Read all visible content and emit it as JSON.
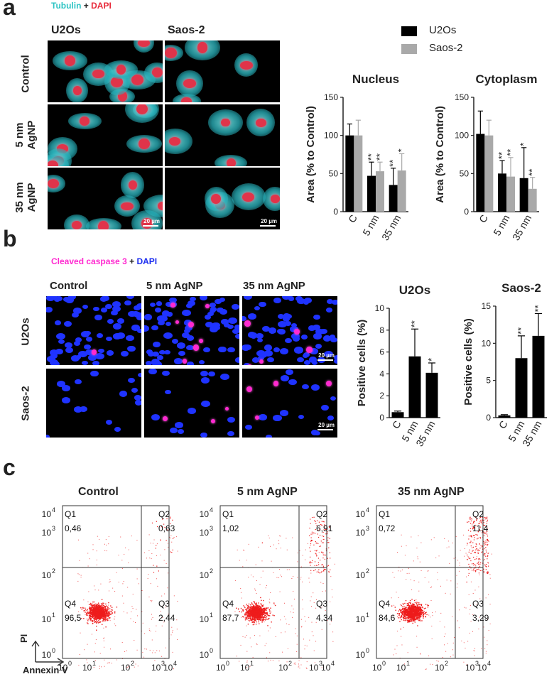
{
  "panel_a": {
    "label": "a",
    "stain_part1": "Tubulin",
    "stain_plus": " + ",
    "stain_part2": "DAPI",
    "col_headers": [
      "U2Os",
      "Saos-2"
    ],
    "row_headers": [
      [
        "Control"
      ],
      [
        "5 nm",
        "AgNP"
      ],
      [
        "35 nm",
        "AgNP"
      ]
    ],
    "scale_bar": "20 µm",
    "legend": [
      "U2Os",
      "Saos-2"
    ]
  },
  "panel_b": {
    "label": "b",
    "stain_part1": "Cleaved caspase 3",
    "stain_plus": " + ",
    "stain_part2": "DAPI",
    "col_headers": [
      "Control",
      "5 nm AgNP",
      "35 nm AgNP"
    ],
    "row_headers": [
      "U2Os",
      "Saos-2"
    ],
    "scale_bar": "20 µm"
  },
  "panel_c": {
    "label": "c",
    "titles": [
      "Control",
      "5 nm AgNP",
      "35 nm AgNP"
    ],
    "quadrants": [
      {
        "Q1": "0,46",
        "Q2": "0,63",
        "Q3": "2,44",
        "Q4": "96,5"
      },
      {
        "Q1": "1,02",
        "Q2": "6,91",
        "Q3": "4,34",
        "Q4": "87,7"
      },
      {
        "Q1": "0,72",
        "Q2": "11,4",
        "Q3": "3,29",
        "Q4": "84,6"
      }
    ],
    "quad_names": [
      "Q1",
      "Q2",
      "Q3",
      "Q4"
    ],
    "axis_x": "Annexin V",
    "axis_y": "PI",
    "tick_exponents": [
      "0",
      "1",
      "2",
      "3",
      "4"
    ],
    "tick_base": "10"
  },
  "colors": {
    "tubulin": "#2ec4c4",
    "dapi_red": "#e8293a",
    "dapi_blue": "#1a2cf0",
    "caspase": "#ff2ad0",
    "u2os_bar": "#000000",
    "saos_bar": "#a9a9a9"
  },
  "chart_data": [
    {
      "type": "bar",
      "title": "Nucleus",
      "ylabel": "Area (% to Control)",
      "categories": [
        "C",
        "5 nm",
        "35 nm"
      ],
      "ylim": [
        0,
        150
      ],
      "yticks": [
        0,
        50,
        100,
        150
      ],
      "series": [
        {
          "name": "U2Os",
          "values": [
            100,
            47,
            35
          ],
          "errors": [
            15,
            18,
            22
          ],
          "sig": [
            "",
            "**",
            "**"
          ]
        },
        {
          "name": "Saos-2",
          "values": [
            100,
            53,
            54
          ],
          "errors": [
            20,
            12,
            22
          ],
          "sig": [
            "",
            "**",
            "*"
          ]
        }
      ]
    },
    {
      "type": "bar",
      "title": "Cytoplasm",
      "ylabel": "Area (% to Control)",
      "categories": [
        "C",
        "5 nm",
        "35 nm"
      ],
      "ylim": [
        0,
        150
      ],
      "yticks": [
        0,
        50,
        100,
        150
      ],
      "series": [
        {
          "name": "U2Os",
          "values": [
            102,
            50,
            44
          ],
          "errors": [
            30,
            17,
            40
          ],
          "sig": [
            "",
            "**",
            "*"
          ]
        },
        {
          "name": "Saos-2",
          "values": [
            100,
            46,
            30
          ],
          "errors": [
            20,
            25,
            15
          ],
          "sig": [
            "",
            "**",
            "**"
          ]
        }
      ]
    },
    {
      "type": "bar",
      "title": "U2Os",
      "ylabel": "Positive cells (%)",
      "categories": [
        "C",
        "5 nm",
        "35 nm"
      ],
      "ylim": [
        0,
        10
      ],
      "yticks": [
        0,
        2,
        4,
        6,
        8,
        10
      ],
      "series": [
        {
          "name": "",
          "values": [
            0.5,
            5.6,
            4.1
          ],
          "errors": [
            0.1,
            2.5,
            0.9
          ],
          "sig": [
            "",
            "**",
            "*"
          ]
        }
      ]
    },
    {
      "type": "bar",
      "title": "Saos-2",
      "ylabel": "Positive cells (%)",
      "categories": [
        "C",
        "5 nm",
        "35 nm"
      ],
      "ylim": [
        0,
        15
      ],
      "yticks": [
        0,
        5,
        10,
        15
      ],
      "series": [
        {
          "name": "",
          "values": [
            0.3,
            8.0,
            11.0
          ],
          "errors": [
            0.1,
            3.0,
            3.0
          ],
          "sig": [
            "",
            "**",
            "**"
          ]
        }
      ]
    }
  ]
}
